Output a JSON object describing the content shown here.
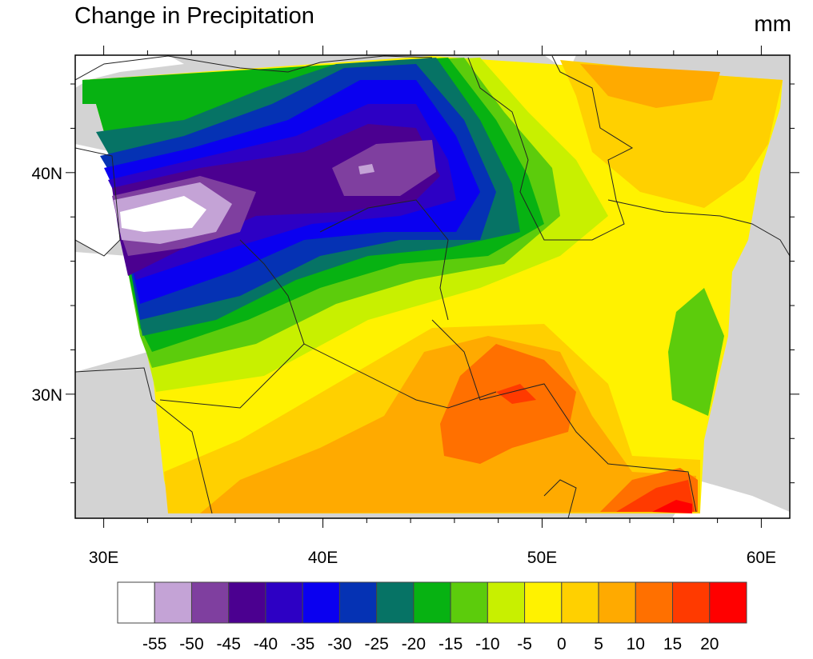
{
  "title": "Change in Precipitation",
  "units": "mm",
  "map": {
    "lon_range": [
      28.7,
      61.3
    ],
    "lat_range": [
      24.4,
      45.3
    ],
    "lon_ticks": [
      30,
      40,
      50,
      60
    ],
    "lon_tick_labels": [
      "30E",
      "40E",
      "50E",
      "60E"
    ],
    "lat_ticks": [
      30,
      40
    ],
    "lat_tick_labels": [
      "30N",
      "40N"
    ],
    "minor_tick_step_deg": 2,
    "land_color": "#d3d3d3",
    "water_color": "#ffffff"
  },
  "colorbar": {
    "labels": [
      "-55",
      "-50",
      "-45",
      "-40",
      "-35",
      "-30",
      "-25",
      "-20",
      "-15",
      "-10",
      "-5",
      "0",
      "5",
      "10",
      "15",
      "20"
    ],
    "colors": [
      "#ffffff",
      "#c4a3d6",
      "#7f3f9f",
      "#4b0090",
      "#2d00c4",
      "#0a00f0",
      "#0532b4",
      "#067365",
      "#07b212",
      "#5ccc0c",
      "#c8f000",
      "#fff200",
      "#ffd000",
      "#ffaa00",
      "#ff7000",
      "#ff3a00",
      "#ff0000"
    ]
  }
}
